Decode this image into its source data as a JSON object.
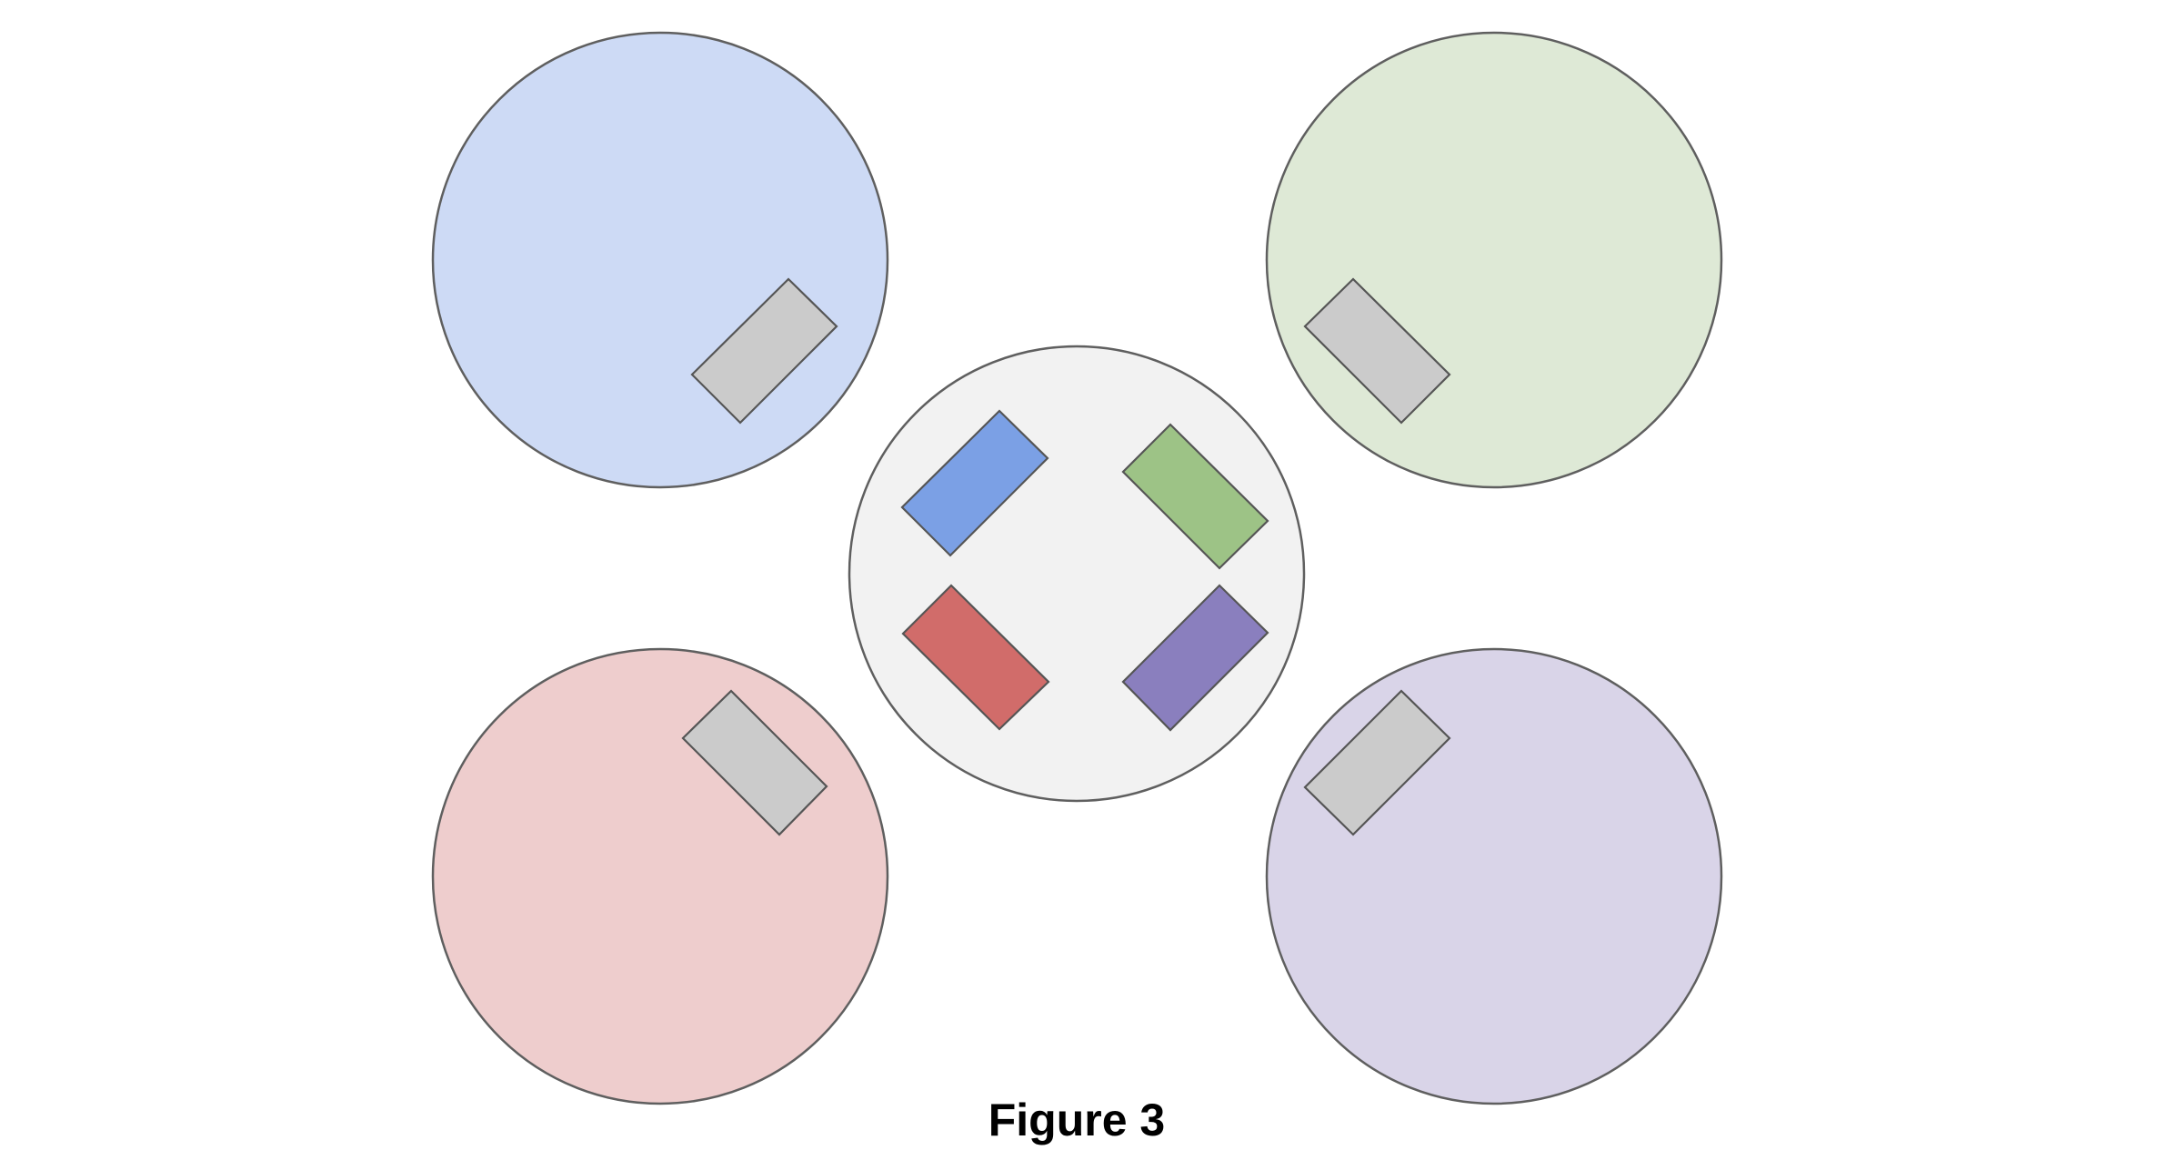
{
  "caption": "Figure 3",
  "colors": {
    "stroke": "#5f5f5f",
    "center_fill": "#f2f2f2",
    "blue_light": "#cddaf5",
    "green_light": "#dee9d6",
    "red_light": "#eecdcd",
    "purple_light": "#d9d4e8",
    "blue": "#7ba0e5",
    "green": "#9dc386",
    "red": "#d16c6a",
    "purple": "#8a7fbe",
    "gray": "#cbcbcb"
  },
  "circles": [
    {
      "name": "center-circle",
      "color": "center_fill"
    },
    {
      "name": "top-left-circle",
      "color": "blue_light"
    },
    {
      "name": "top-right-circle",
      "color": "green_light"
    },
    {
      "name": "bottom-left-circle",
      "color": "red_light"
    },
    {
      "name": "bottom-right-circle",
      "color": "purple_light"
    }
  ],
  "rectangles": [
    {
      "name": "center-blue-rect",
      "color": "blue"
    },
    {
      "name": "center-green-rect",
      "color": "green"
    },
    {
      "name": "center-red-rect",
      "color": "red"
    },
    {
      "name": "center-purple-rect",
      "color": "purple"
    },
    {
      "name": "top-left-gray-rect",
      "color": "gray"
    },
    {
      "name": "top-right-gray-rect",
      "color": "gray"
    },
    {
      "name": "bottom-left-gray-rect",
      "color": "gray"
    },
    {
      "name": "bottom-right-gray-rect",
      "color": "gray"
    }
  ]
}
